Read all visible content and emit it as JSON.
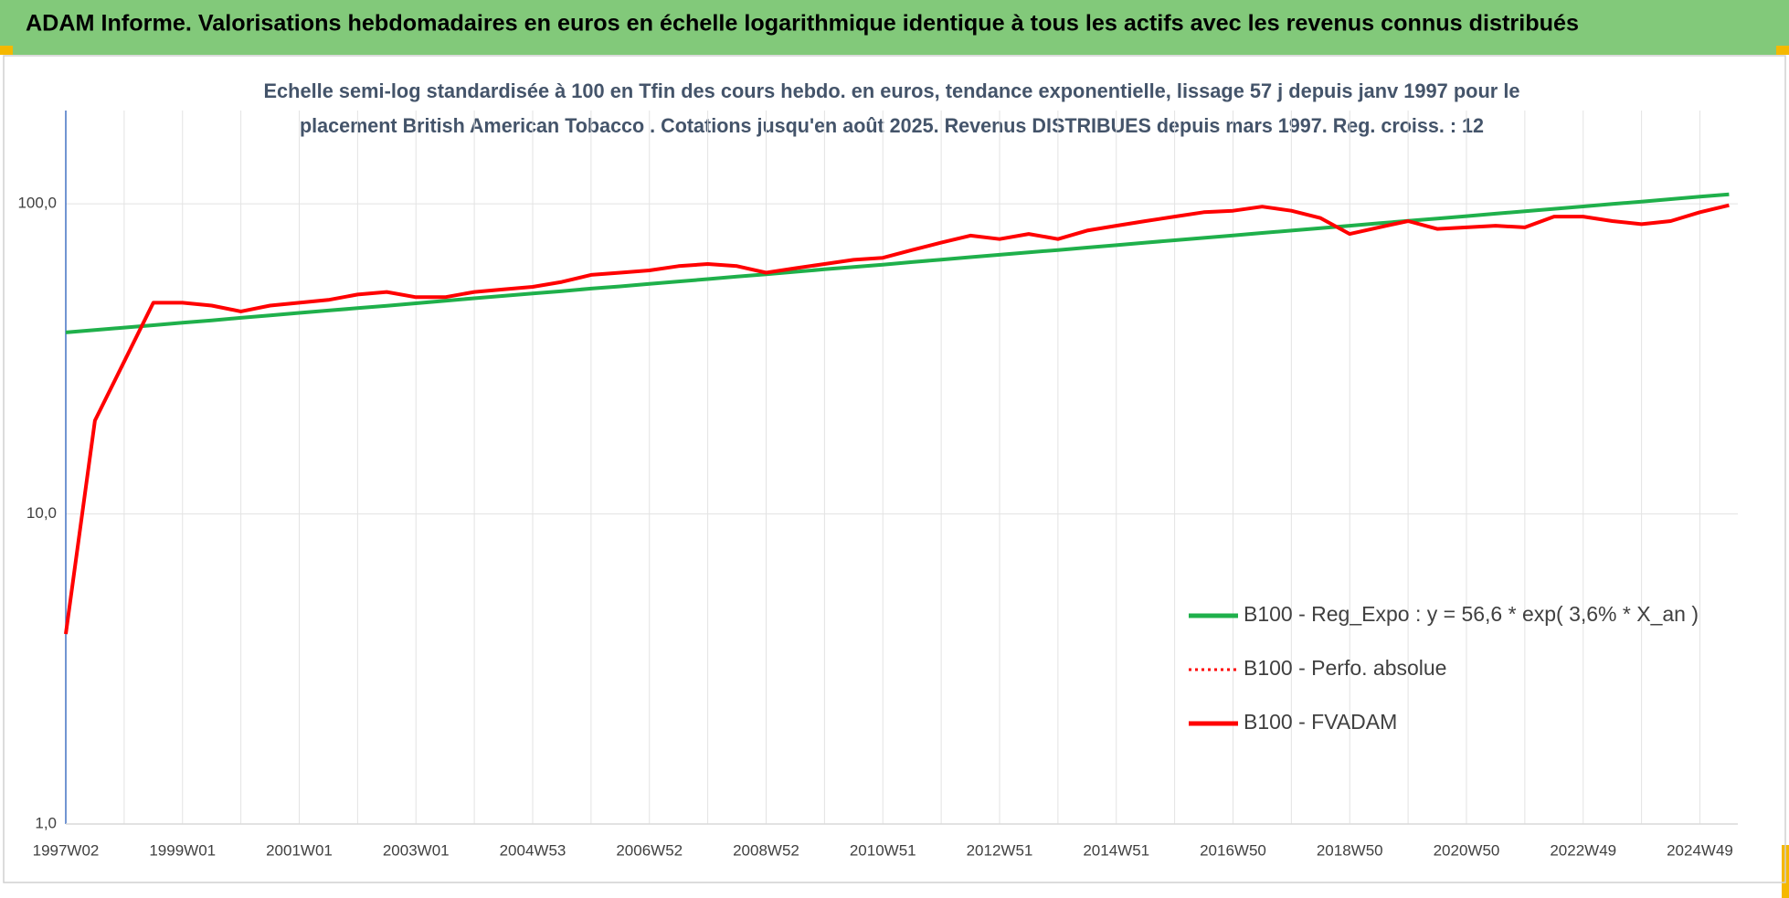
{
  "header": {
    "title": "ADAM Informe. Valorisations hebdomadaires en euros en échelle logarithmique identique à tous les actifs avec les revenus connus distribués"
  },
  "chart_data": {
    "type": "line",
    "subtitle": [
      "Echelle semi-log standardisée à 100 en Tfin des cours hebdo. en euros, tendance exponentielle, lissage 57 j depuis janv 1997 pour le",
      "placement British American Tobacco  . Cotations jusqu'en août 2025. Revenus DISTRIBUES depuis mars 1997. Reg. croiss. : 12"
    ],
    "categories": [
      "1997W02",
      null,
      null,
      null,
      "1999W01",
      null,
      null,
      null,
      "2001W01",
      null,
      null,
      null,
      "2003W01",
      null,
      null,
      null,
      "2004W53",
      null,
      null,
      null,
      "2006W52",
      null,
      null,
      null,
      "2008W52",
      null,
      null,
      null,
      "2010W51",
      null,
      null,
      null,
      "2012W51",
      null,
      null,
      null,
      "2014W51",
      null,
      null,
      null,
      "2016W50",
      null,
      null,
      null,
      "2018W50",
      null,
      null,
      null,
      "2020W50",
      null,
      null,
      null,
      "2022W49",
      null,
      null,
      null,
      "2024W49",
      null
    ],
    "log_scale": true,
    "grid": true,
    "legend_position": "right",
    "ylim": [
      1,
      200
    ],
    "yticks": [
      {
        "value": 1,
        "label": "1,0"
      },
      {
        "value": 10,
        "label": "10,0"
      },
      {
        "value": 100,
        "label": "100,0"
      }
    ],
    "series": [
      {
        "name": "B100 - Reg_Expo : y = 56,6 * exp( 3,6% *  X_an )",
        "color": "#1fb04b",
        "dash": "solid",
        "values": [
          38.5,
          39.2,
          39.9,
          40.6,
          41.4,
          42.1,
          42.9,
          43.7,
          44.5,
          45.3,
          46.1,
          46.9,
          47.8,
          48.7,
          49.6,
          50.5,
          51.4,
          52.3,
          53.3,
          54.2,
          55.2,
          56.2,
          57.2,
          58.3,
          59.3,
          60.4,
          61.5,
          62.6,
          63.7,
          64.9,
          66.1,
          67.3,
          68.5,
          69.8,
          71.0,
          72.3,
          73.6,
          75.0,
          76.3,
          77.7,
          79.1,
          80.6,
          82.0,
          83.5,
          85.0,
          86.6,
          88.1,
          89.7,
          91.3,
          93.0,
          94.7,
          96.4,
          98.1,
          99.9,
          101.7,
          103.6,
          105.5,
          107.4
        ]
      },
      {
        "name": "B100 - Perfo. absolue",
        "color": "#ff0000",
        "dash": "dotted",
        "values": [
          4.1,
          20,
          31,
          48,
          48,
          47,
          45,
          47,
          48,
          49,
          51,
          52,
          50,
          50,
          52,
          53,
          54,
          56,
          59,
          60,
          61,
          63,
          64,
          63,
          60,
          62,
          64,
          66,
          67,
          71,
          75,
          79,
          77,
          80,
          77,
          82,
          85,
          88,
          91,
          94,
          95,
          98,
          95,
          90,
          80,
          84,
          88,
          83,
          84,
          85,
          84,
          91,
          91,
          88,
          86,
          88,
          94,
          99
        ]
      },
      {
        "name": "B100 - FVADAM",
        "color": "#ff0000",
        "dash": "solid",
        "values": [
          4.1,
          20,
          31,
          48,
          48,
          47,
          45,
          47,
          48,
          49,
          51,
          52,
          50,
          50,
          52,
          53,
          54,
          56,
          59,
          60,
          61,
          63,
          64,
          63,
          60,
          62,
          64,
          66,
          67,
          71,
          75,
          79,
          77,
          80,
          77,
          82,
          85,
          88,
          91,
          94,
          95,
          98,
          95,
          90,
          80,
          84,
          88,
          83,
          84,
          85,
          84,
          91,
          91,
          88,
          86,
          88,
          94,
          99
        ]
      }
    ]
  }
}
